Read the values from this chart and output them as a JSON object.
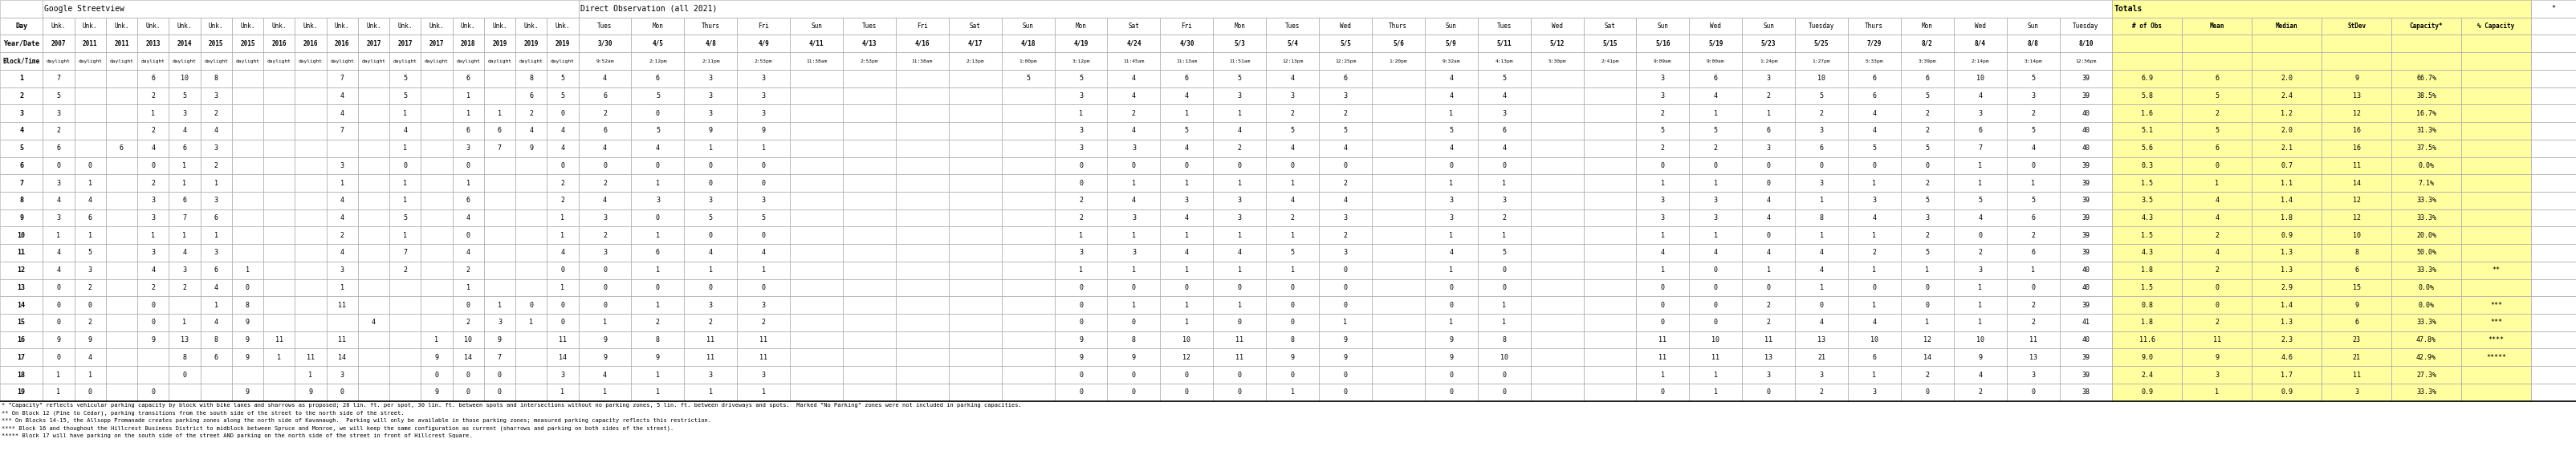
{
  "footnotes": [
    "* \"Capacity\" reflects vehicular parking capacity by block with bike lanes and sharrows as proposed; 20 lin. ft. per spot, 30 lin. ft. between spots and intersections without no parking zones, 5 lin. ft. between driveways and spots.  Marked \"No Parking\" zones were not included in parking capacities.",
    "** On Block 12 (Pine to Cedar), parking transitions from the south side of the street to the north side of the street.",
    "*** On Blocks 14-15, the Allsopp Promanade creates parking zones along the north side of Kavanaugh.  Parking will only be available in those parking zones; measured parking capacity reflects this restriction.",
    "**** Block 16 and thoughout the Hillcrest Business District to midblock between Spruce and Monroe, we will keep the same configuration as current (sharrows and parking on both sides of the street).",
    "***** Block 17 will have parking on the south side of the street AND parking on the north side of the street in front of Hillcrest Square."
  ],
  "blocks": [
    1,
    2,
    3,
    4,
    5,
    6,
    7,
    8,
    9,
    10,
    11,
    12,
    13,
    14,
    15,
    16,
    17,
    18,
    19
  ],
  "header_row0_label": "",
  "header_row0_sv": "Google Streetview",
  "header_row0_obs": "Direct Observation (all 2021)",
  "header_row0_tot": "Totals",
  "sv_days": [
    "Unk.",
    "Unk.",
    "Unk.",
    "Unk.",
    "Unk.",
    "Unk.",
    "Unk.",
    "Unk.",
    "Unk.",
    "Unk.",
    "Unk.",
    "Unk.",
    "Unk.",
    "Unk.",
    "Unk.",
    "Unk.",
    "Unk."
  ],
  "sv_years": [
    "2007",
    "2011",
    "2011",
    "2013",
    "2014",
    "2015",
    "2015",
    "2016",
    "2016",
    "2016",
    "2017",
    "2017",
    "2017",
    "2018",
    "2019",
    "2019",
    "2019"
  ],
  "sv_times": [
    "daylight",
    "daylight",
    "daylight",
    "daylight",
    "daylight",
    "daylight",
    "daylight",
    "daylight",
    "daylight",
    "daylight",
    "daylight",
    "daylight",
    "daylight",
    "daylight",
    "daylight",
    "daylight",
    "daylight"
  ],
  "obs_days": [
    "Tues",
    "Mon",
    "Thurs",
    "Fri",
    "Sun",
    "Tues",
    "Fri",
    "Sat",
    "Sun",
    "Mon",
    "Sat",
    "Fri",
    "Mon",
    "Tues",
    "Wed",
    "Thurs",
    "Sun",
    "Tues",
    "Wed",
    "Sat",
    "Sun",
    "Wed",
    "Sun",
    "Tuesday",
    "Thurs",
    "Mon",
    "Wed",
    "Sun",
    "Tuesday"
  ],
  "obs_dates": [
    "3/30",
    "4/5",
    "4/8",
    "4/9",
    "4/11",
    "4/13",
    "4/16",
    "4/17",
    "4/18",
    "4/19",
    "4/24",
    "4/30",
    "5/3",
    "5/4",
    "5/5",
    "5/6",
    "5/9",
    "5/11",
    "5/12",
    "5/15",
    "5/16",
    "5/19",
    "5/23",
    "5/25",
    "7/29",
    "8/2",
    "8/4",
    "8/8",
    "8/10"
  ],
  "obs_times": [
    "9:52am",
    "2:12pm",
    "2:11pm",
    "2:53pm",
    "11:38am",
    "2:53pm",
    "11:38am",
    "2:13pm",
    "1:00pm",
    "3:12pm",
    "11:45am",
    "11:13am",
    "11:51am",
    "12:13pm",
    "12:25pm",
    "1:20pm",
    "9:32am",
    "4:13pm",
    "5:30pm",
    "2:41pm",
    "9:09am",
    "9:00am",
    "1:24pm",
    "1:27pm",
    "5:33pm",
    "3:39pm",
    "2:14pm",
    "3:14pm",
    "12:56pm"
  ],
  "tot_labels": [
    "# of Obs",
    "Mean",
    "Median",
    "StDev",
    "Capacity*",
    "% Capacity"
  ],
  "tot_row": [
    "*"
  ],
  "data": {
    "1": [
      "7",
      "",
      "",
      "6",
      "10",
      "8",
      "",
      "",
      "",
      "7",
      "",
      "5",
      "",
      "6",
      "",
      "8",
      "5",
      "4",
      "6",
      "3",
      "3",
      "",
      "",
      "",
      "",
      "5",
      "5",
      "4",
      "6",
      "5",
      "4",
      "6",
      "",
      "4",
      "5",
      "",
      "",
      "3",
      "6",
      "3",
      "10",
      "6",
      "6",
      "10",
      "5",
      "39",
      "6.9",
      "6",
      "2.0",
      "9",
      "66.7%",
      ""
    ],
    "2": [
      "5",
      "",
      "",
      "2",
      "5",
      "3",
      "",
      "",
      "",
      "4",
      "",
      "5",
      "",
      "1",
      "",
      "6",
      "5",
      "6",
      "5",
      "3",
      "3",
      "",
      "",
      "",
      "",
      "",
      "3",
      "4",
      "4",
      "3",
      "3",
      "3",
      "",
      "4",
      "4",
      "",
      "",
      "3",
      "4",
      "2",
      "5",
      "6",
      "5",
      "4",
      "3",
      "39",
      "5.8",
      "5",
      "2.4",
      "13",
      "38.5%",
      ""
    ],
    "3": [
      "3",
      "",
      "",
      "1",
      "3",
      "2",
      "",
      "",
      "",
      "4",
      "",
      "1",
      "",
      "1",
      "1",
      "2",
      "0",
      "2",
      "0",
      "3",
      "3",
      "",
      "",
      "",
      "",
      "",
      "1",
      "2",
      "1",
      "1",
      "2",
      "2",
      "",
      "1",
      "3",
      "",
      "",
      "2",
      "1",
      "1",
      "2",
      "4",
      "2",
      "3",
      "2",
      "40",
      "1.6",
      "2",
      "1.2",
      "12",
      "16.7%",
      ""
    ],
    "4": [
      "2",
      "",
      "",
      "2",
      "4",
      "4",
      "",
      "",
      "",
      "7",
      "",
      "4",
      "",
      "6",
      "6",
      "4",
      "4",
      "6",
      "5",
      "9",
      "9",
      "",
      "",
      "",
      "",
      "",
      "3",
      "4",
      "5",
      "4",
      "5",
      "5",
      "",
      "5",
      "6",
      "",
      "",
      "5",
      "5",
      "6",
      "3",
      "4",
      "2",
      "6",
      "5",
      "40",
      "5.1",
      "5",
      "2.0",
      "16",
      "31.3%",
      ""
    ],
    "5": [
      "6",
      "",
      "6",
      "4",
      "6",
      "3",
      "",
      "",
      "",
      "",
      "",
      "1",
      "",
      "3",
      "7",
      "9",
      "4",
      "4",
      "4",
      "1",
      "1",
      "",
      "",
      "",
      "",
      "",
      "3",
      "3",
      "4",
      "2",
      "4",
      "4",
      "",
      "4",
      "4",
      "",
      "",
      "2",
      "2",
      "3",
      "6",
      "5",
      "5",
      "7",
      "4",
      "40",
      "5.6",
      "6",
      "2.1",
      "16",
      "37.5%",
      ""
    ],
    "6": [
      "0",
      "0",
      "",
      "0",
      "1",
      "2",
      "",
      "",
      "",
      "3",
      "",
      "0",
      "",
      "0",
      "",
      "",
      "0",
      "0",
      "0",
      "0",
      "0",
      "",
      "",
      "",
      "",
      "",
      "0",
      "0",
      "0",
      "0",
      "0",
      "0",
      "",
      "0",
      "0",
      "",
      "",
      "0",
      "0",
      "0",
      "0",
      "0",
      "0",
      "1",
      "0",
      "39",
      "0.3",
      "0",
      "0.7",
      "11",
      "0.0%",
      ""
    ],
    "7": [
      "3",
      "1",
      "",
      "2",
      "1",
      "1",
      "",
      "",
      "",
      "1",
      "",
      "1",
      "",
      "1",
      "",
      "",
      "2",
      "2",
      "1",
      "0",
      "0",
      "",
      "",
      "",
      "",
      "",
      "0",
      "1",
      "1",
      "1",
      "1",
      "2",
      "",
      "1",
      "1",
      "",
      "",
      "1",
      "1",
      "0",
      "3",
      "1",
      "2",
      "1",
      "1",
      "39",
      "1.5",
      "1",
      "1.1",
      "14",
      "7.1%",
      ""
    ],
    "8": [
      "4",
      "4",
      "",
      "3",
      "6",
      "3",
      "",
      "",
      "",
      "4",
      "",
      "1",
      "",
      "6",
      "",
      "",
      "2",
      "4",
      "3",
      "3",
      "3",
      "",
      "",
      "",
      "",
      "",
      "2",
      "4",
      "3",
      "3",
      "4",
      "4",
      "",
      "3",
      "3",
      "",
      "",
      "3",
      "3",
      "4",
      "1",
      "3",
      "5",
      "5",
      "5",
      "39",
      "3.5",
      "4",
      "1.4",
      "12",
      "33.3%",
      ""
    ],
    "9": [
      "3",
      "6",
      "",
      "3",
      "7",
      "6",
      "",
      "",
      "",
      "4",
      "",
      "5",
      "",
      "4",
      "",
      "",
      "1",
      "3",
      "0",
      "5",
      "5",
      "",
      "",
      "",
      "",
      "",
      "2",
      "3",
      "4",
      "3",
      "2",
      "3",
      "",
      "3",
      "2",
      "",
      "",
      "3",
      "3",
      "4",
      "8",
      "4",
      "3",
      "4",
      "6",
      "39",
      "4.3",
      "4",
      "1.8",
      "12",
      "33.3%",
      ""
    ],
    "10": [
      "1",
      "1",
      "",
      "1",
      "1",
      "1",
      "",
      "",
      "",
      "2",
      "",
      "1",
      "",
      "0",
      "",
      "",
      "1",
      "2",
      "1",
      "0",
      "0",
      "",
      "",
      "",
      "",
      "",
      "1",
      "1",
      "1",
      "1",
      "1",
      "2",
      "",
      "1",
      "1",
      "",
      "",
      "1",
      "1",
      "0",
      "1",
      "1",
      "2",
      "0",
      "2",
      "39",
      "1.5",
      "2",
      "0.9",
      "10",
      "20.0%",
      ""
    ],
    "11": [
      "4",
      "5",
      "",
      "3",
      "4",
      "3",
      "",
      "",
      "",
      "4",
      "",
      "7",
      "",
      "4",
      "",
      "",
      "4",
      "3",
      "6",
      "4",
      "4",
      "",
      "",
      "",
      "",
      "",
      "3",
      "3",
      "4",
      "4",
      "5",
      "3",
      "",
      "4",
      "5",
      "",
      "",
      "4",
      "4",
      "4",
      "4",
      "2",
      "5",
      "2",
      "6",
      "39",
      "4.3",
      "4",
      "1.3",
      "8",
      "50.0%",
      ""
    ],
    "12": [
      "4",
      "3",
      "",
      "4",
      "3",
      "6",
      "1",
      "",
      "",
      "3",
      "",
      "2",
      "",
      "2",
      "",
      "",
      "0",
      "0",
      "1",
      "1",
      "1",
      "",
      "",
      "",
      "",
      "",
      "1",
      "1",
      "1",
      "1",
      "1",
      "0",
      "",
      "1",
      "0",
      "",
      "",
      "1",
      "0",
      "1",
      "4",
      "1",
      "1",
      "3",
      "1",
      "40",
      "1.8",
      "2",
      "1.3",
      "6",
      "33.3%",
      "**"
    ],
    "13": [
      "0",
      "2",
      "",
      "2",
      "2",
      "4",
      "0",
      "",
      "",
      "1",
      "",
      "",
      "",
      "1",
      "",
      "",
      "1",
      "0",
      "0",
      "0",
      "0",
      "",
      "",
      "",
      "",
      "",
      "0",
      "0",
      "0",
      "0",
      "0",
      "0",
      "",
      "0",
      "0",
      "",
      "",
      "0",
      "0",
      "0",
      "1",
      "0",
      "0",
      "1",
      "0",
      "40",
      "1.5",
      "0",
      "2.9",
      "15",
      "0.0%",
      ""
    ],
    "14": [
      "0",
      "0",
      "",
      "0",
      "",
      "1",
      "8",
      "",
      "",
      "11",
      "",
      "",
      "",
      "0",
      "1",
      "0",
      "0",
      "0",
      "1",
      "3",
      "3",
      "",
      "",
      "",
      "",
      "",
      "0",
      "1",
      "1",
      "1",
      "0",
      "0",
      "",
      "0",
      "1",
      "",
      "",
      "0",
      "0",
      "2",
      "0",
      "1",
      "0",
      "1",
      "2",
      "39",
      "0.8",
      "0",
      "1.4",
      "9",
      "0.0%",
      "***"
    ],
    "15": [
      "0",
      "2",
      "",
      "0",
      "1",
      "4",
      "9",
      "",
      "",
      "",
      "4",
      "",
      "",
      "2",
      "3",
      "1",
      "0",
      "1",
      "2",
      "2",
      "2",
      "",
      "",
      "",
      "",
      "",
      "0",
      "0",
      "1",
      "0",
      "0",
      "1",
      "",
      "1",
      "1",
      "",
      "",
      "0",
      "0",
      "2",
      "4",
      "4",
      "1",
      "1",
      "2",
      "41",
      "1.8",
      "2",
      "1.3",
      "6",
      "33.3%",
      "***"
    ],
    "16": [
      "9",
      "9",
      "",
      "9",
      "13",
      "8",
      "9",
      "11",
      "",
      "11",
      "",
      "",
      "1",
      "10",
      "9",
      "",
      "11",
      "9",
      "8",
      "11",
      "11",
      "",
      "",
      "",
      "",
      "",
      "9",
      "8",
      "10",
      "11",
      "8",
      "9",
      "",
      "9",
      "8",
      "",
      "",
      "11",
      "10",
      "11",
      "13",
      "10",
      "12",
      "10",
      "11",
      "40",
      "11.6",
      "11",
      "2.3",
      "23",
      "47.8%",
      "****"
    ],
    "17": [
      "0",
      "4",
      "",
      "",
      "8",
      "6",
      "9",
      "1",
      "11",
      "14",
      "",
      "",
      "9",
      "14",
      "7",
      "",
      "14",
      "9",
      "9",
      "11",
      "11",
      "",
      "",
      "",
      "",
      "",
      "9",
      "9",
      "12",
      "11",
      "9",
      "9",
      "",
      "9",
      "10",
      "",
      "",
      "11",
      "11",
      "13",
      "21",
      "6",
      "14",
      "9",
      "13",
      "39",
      "9.0",
      "9",
      "4.6",
      "21",
      "42.9%",
      "*****"
    ],
    "18": [
      "1",
      "1",
      "",
      "",
      "0",
      "",
      "",
      "",
      "1",
      "3",
      "",
      "",
      "0",
      "0",
      "0",
      "",
      "3",
      "4",
      "1",
      "3",
      "3",
      "",
      "",
      "",
      "",
      "",
      "0",
      "0",
      "0",
      "0",
      "0",
      "0",
      "",
      "0",
      "0",
      "",
      "",
      "1",
      "1",
      "3",
      "3",
      "1",
      "2",
      "4",
      "3",
      "39",
      "2.4",
      "3",
      "1.7",
      "11",
      "27.3%",
      ""
    ],
    "19": [
      "1",
      "0",
      "",
      "0",
      "",
      "",
      "9",
      "",
      "9",
      "0",
      "",
      "",
      "9",
      "0",
      "0",
      "",
      "1",
      "1",
      "1",
      "1",
      "1",
      "",
      "",
      "",
      "",
      "",
      "0",
      "0",
      "0",
      "0",
      "1",
      "0",
      "",
      "0",
      "0",
      "",
      "",
      "0",
      "1",
      "0",
      "2",
      "3",
      "0",
      "2",
      "0",
      "38",
      "0.9",
      "1",
      "0.9",
      "3",
      "33.3%",
      ""
    ]
  },
  "yellow_bg": "#FFFFA0",
  "white_bg": "#FFFFFF",
  "grid_color": "#AAAAAA",
  "text_black": "#000000",
  "bold_pct_threshold": 33.4
}
